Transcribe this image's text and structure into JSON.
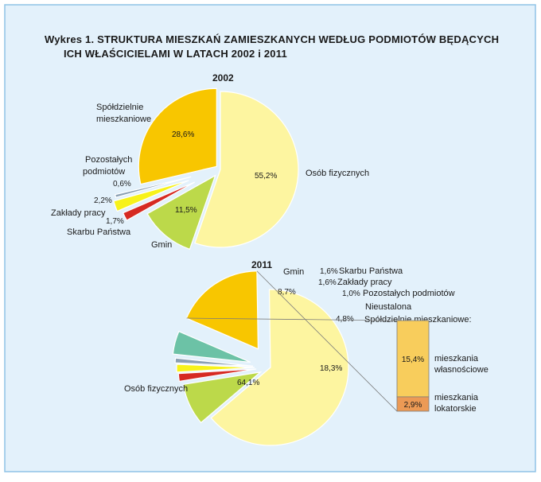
{
  "colors": {
    "background": "#e3f1fb",
    "frame": "#8fc3e6",
    "osoby": "#fdf5a0",
    "spoldzielnie": "#f8c600",
    "gminy": "#bcd94a",
    "skarb": "#d62a22",
    "zaklady": "#f7f21a",
    "pozostale": "#8aa0b4",
    "nieustalona": "#6cc2a6",
    "wlasnosciowe": "#f8cd5c",
    "lokatorskie": "#ec9a55"
  },
  "title": {
    "line1": "Wykres 1. STRUKTURA MIESZKAŃ ZAMIESZKANYCH WEDŁUG PODMIOTÓW BĘDĄCYCH",
    "line2": "ICH WŁAŚCICIELAMI W LATACH 2002 i 2011"
  },
  "chart_data": [
    {
      "type": "pie",
      "title": "2002",
      "slices": [
        {
          "label": "Osób fizycznych",
          "value": 55.2,
          "value_label": "55,2%",
          "color": "osoby"
        },
        {
          "label": "Gmin",
          "value": 11.5,
          "value_label": "11,5%",
          "color": "gminy"
        },
        {
          "label": "Skarbu Państwa",
          "value": 1.7,
          "value_label": "1,7%",
          "color": "skarb"
        },
        {
          "label": "Zakłady pracy",
          "value": 2.2,
          "value_label": "2,2%",
          "color": "zaklady"
        },
        {
          "label": "Pozostałych podmiotów",
          "value": 0.6,
          "value_label": "0,6%",
          "color": "pozostale"
        },
        {
          "label": "Spółdzielnie mieszkaniowe",
          "value": 28.6,
          "value_label": "28,6%",
          "color": "spoldzielnie"
        }
      ]
    },
    {
      "type": "pie",
      "title": "2011",
      "slices": [
        {
          "label": "Osób fizycznych",
          "value": 64.1,
          "value_label": "64,1%",
          "color": "osoby"
        },
        {
          "label": "Gmin",
          "value": 8.7,
          "value_label": "8,7%",
          "color": "gminy"
        },
        {
          "label": "Skarbu Państwa",
          "value": 1.6,
          "value_label": "1,6%",
          "color": "skarb"
        },
        {
          "label": "Zakłady pracy",
          "value": 1.6,
          "value_label": "1,6%",
          "color": "zaklady"
        },
        {
          "label": "Pozostałych podmiotów",
          "value": 1.0,
          "value_label": "1,0%",
          "color": "pozostale"
        },
        {
          "label": "Nieustalona",
          "value": 4.8,
          "value_label": "4,8%",
          "color": "nieustalona"
        },
        {
          "label": "Spółdzielnie mieszkaniowe",
          "value": 18.3,
          "value_label": "18,3%",
          "color": "spoldzielnie"
        }
      ],
      "breakdown": {
        "title": "Spółdzielnie mieszkaniowe:",
        "parts": [
          {
            "label_line1": "mieszkania",
            "label_line2": "własnościowe",
            "value": 15.4,
            "value_label": "15,4%",
            "color": "wlasnosciowe"
          },
          {
            "label_line1": "mieszkania",
            "label_line2": "lokatorskie",
            "value": 2.9,
            "value_label": "2,9%",
            "color": "lokatorskie"
          }
        ]
      }
    }
  ],
  "labels_2002": {
    "spoldzielnie_1": "Spółdzielnie",
    "spoldzielnie_2": "mieszkaniowe",
    "pozostalych_1": "Pozostałych",
    "pozostalych_2": "podmiotów"
  }
}
